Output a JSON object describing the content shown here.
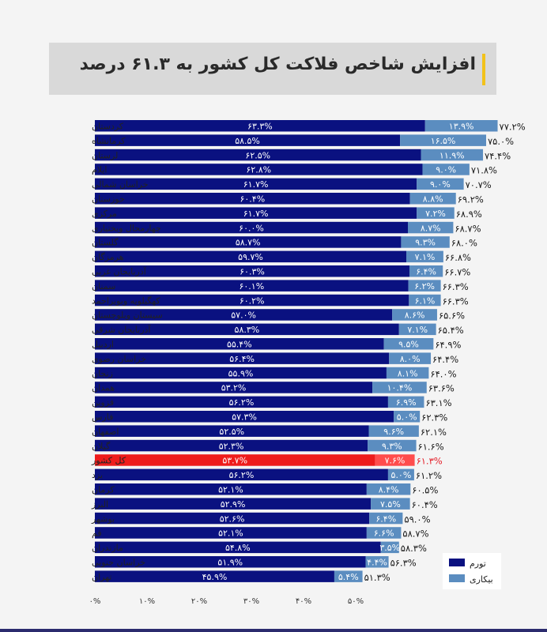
{
  "title": "افزایش شاخص فلاکت کل کشور به ۶۱.۳ درصد",
  "colors": {
    "inflation": "#0a1180",
    "unemployment": "#5b8dc0",
    "highlight_inflation": "#ee1c1c",
    "highlight_unemployment": "#ff4d4d",
    "highlight_text": "#e4202a"
  },
  "chart_data": {
    "type": "bar",
    "stacked": true,
    "orientation": "horizontal",
    "xlim": [
      0,
      80
    ],
    "x_ticks": [
      "۰%",
      "۱۰%",
      "۲۰%",
      "۳۰%",
      "۴۰%",
      "۵۰%"
    ],
    "legend": {
      "position": "bottom-right"
    },
    "categories": [
      "کردستان",
      "کرمانشاه",
      "لرستان",
      "ایلام",
      "خراسان شمالی",
      "خوزستان",
      "مرکزی",
      "چهارمحال وبختیاری",
      "گلستان",
      "هرمزگان",
      "آذربایجان غربی",
      "سمنان",
      "کهگیلویه وبویراحمد",
      "سیستان وبلوچستان",
      "آذربایجان شرقی",
      "اردبیل",
      "خراسان رضوی",
      "زنجان",
      "همدان",
      "قزوین",
      "فارس",
      "اصفهان",
      "گیلان",
      "کل کشور",
      "یزد",
      "کرمان",
      "البرز",
      "بوشهر",
      "قم",
      "مازندران",
      "خراسان جنوبی",
      "تهران"
    ],
    "series": [
      {
        "name": "تورم",
        "values": [
          63.3,
          58.5,
          62.5,
          62.8,
          61.7,
          60.4,
          61.7,
          60.0,
          58.7,
          59.7,
          60.3,
          60.1,
          60.2,
          57.0,
          58.3,
          55.4,
          56.4,
          55.9,
          53.2,
          56.2,
          57.3,
          52.5,
          52.3,
          53.7,
          56.2,
          52.1,
          52.9,
          52.6,
          52.1,
          54.8,
          51.9,
          45.9
        ],
        "labels": [
          "۶۳.۳%",
          "۵۸.۵%",
          "۶۲.۵%",
          "۶۲.۸%",
          "۶۱.۷%",
          "۶۰.۴%",
          "۶۱.۷%",
          "۶۰.۰%",
          "۵۸.۷%",
          "۵۹.۷%",
          "۶۰.۳%",
          "۶۰.۱%",
          "۶۰.۲%",
          "۵۷.۰%",
          "۵۸.۳%",
          "۵۵.۴%",
          "۵۶.۴%",
          "۵۵.۹%",
          "۵۳.۲%",
          "۵۶.۲%",
          "۵۷.۳%",
          "۵۲.۵%",
          "۵۲.۳%",
          "۵۳.۷%",
          "۵۶.۲%",
          "۵۲.۱%",
          "۵۲.۹%",
          "۵۲.۶%",
          "۵۲.۱%",
          "۵۴.۸%",
          "۵۱.۹%",
          "۴۵.۹%"
        ]
      },
      {
        "name": "بیکاری",
        "values": [
          13.9,
          16.5,
          11.9,
          9.0,
          9.0,
          8.8,
          7.2,
          8.7,
          9.3,
          7.1,
          6.4,
          6.2,
          6.1,
          8.6,
          7.1,
          9.5,
          8.0,
          8.1,
          10.4,
          6.9,
          5.0,
          9.6,
          9.3,
          7.6,
          5.0,
          8.4,
          7.5,
          6.4,
          6.6,
          3.5,
          4.4,
          5.4
        ],
        "labels": [
          "۱۳.۹%",
          "۱۶.۵%",
          "۱۱.۹%",
          "۹.۰%",
          "۹.۰%",
          "۸.۸%",
          "۷.۲%",
          "۸.۷%",
          "۹.۳%",
          "۷.۱%",
          "۶.۴%",
          "۶.۲%",
          "۶.۱%",
          "۸.۶%",
          "۷.۱%",
          "۹.۵%",
          "۸.۰%",
          "۸.۱%",
          "۱۰.۴%",
          "۶.۹%",
          "۵.۰%",
          "۹.۶%",
          "۹.۳%",
          "۷.۶%",
          "۵.۰%",
          "۸.۴%",
          "۷.۵%",
          "۶.۴%",
          "۶.۶%",
          "۳.۵%",
          "۴.۴%",
          "۵.۴%"
        ]
      }
    ],
    "totals": [
      77.2,
      75.0,
      74.4,
      71.8,
      70.7,
      69.2,
      68.9,
      68.7,
      68.0,
      66.8,
      66.7,
      66.3,
      66.3,
      65.6,
      65.4,
      64.9,
      64.4,
      64.0,
      63.6,
      63.1,
      62.3,
      62.1,
      61.6,
      61.3,
      61.2,
      60.5,
      60.4,
      59.0,
      58.7,
      58.3,
      56.3,
      51.3
    ],
    "total_labels": [
      "۷۷.۲%",
      "۷۵.۰%",
      "۷۴.۴%",
      "۷۱.۸%",
      "۷۰.۷%",
      "۶۹.۲%",
      "۶۸.۹%",
      "۶۸.۷%",
      "۶۸.۰%",
      "۶۶.۸%",
      "۶۶.۷%",
      "۶۶.۳%",
      "۶۶.۳%",
      "۶۵.۶%",
      "۶۵.۴%",
      "۶۴.۹%",
      "۶۴.۴%",
      "۶۴.۰%",
      "۶۳.۶%",
      "۶۳.۱%",
      "۶۲.۳%",
      "۶۲.۱%",
      "۶۱.۶%",
      "۶۱.۳%",
      "۶۱.۲%",
      "۶۰.۵%",
      "۶۰.۴%",
      "۵۹.۰%",
      "۵۸.۷%",
      "۵۸.۳%",
      "۵۶.۳%",
      "۵۱.۳%"
    ],
    "highlight_category": "کل کشور"
  }
}
